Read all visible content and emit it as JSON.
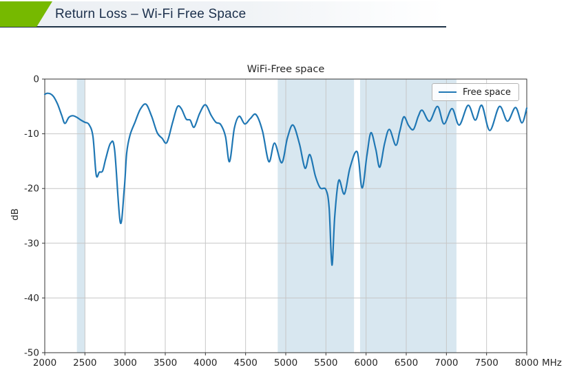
{
  "header": {
    "title": "Return Loss – Wi-Fi Free Space",
    "accent_color": "#76b900",
    "underline_color": "#1e3246",
    "title_color": "#1b2f4b"
  },
  "chart_data": {
    "type": "line",
    "title": "WiFi-Free space",
    "ylabel": "dB",
    "x_unit": "MHz",
    "xlim": [
      2000,
      8000
    ],
    "ylim": [
      -50,
      0
    ],
    "x_ticks": [
      2000,
      2500,
      3000,
      3500,
      4000,
      4500,
      5000,
      5500,
      6000,
      6500,
      7000,
      7500,
      8000
    ],
    "y_ticks": [
      0,
      -10,
      -20,
      -30,
      -40,
      -50
    ],
    "grid": true,
    "grid_color": "#c6c6c6",
    "spine_color": "#333333",
    "legend": {
      "position": "upper right",
      "entries": [
        {
          "label": "Free space",
          "color": "#1f77b4"
        }
      ]
    },
    "bands": {
      "color": "#d8e7f0",
      "regions": [
        {
          "name": "wifi-2.4GHz-band",
          "from": 2400,
          "to": 2500
        },
        {
          "name": "wifi-5GHz-band",
          "from": 4900,
          "to": 5850
        },
        {
          "name": "wifi-6GHz-band",
          "from": 5925,
          "to": 7125
        }
      ]
    },
    "series": [
      {
        "name": "Free space",
        "color": "#1f77b4",
        "points": [
          [
            2000,
            -2.8
          ],
          [
            2030,
            -2.6
          ],
          [
            2070,
            -2.7
          ],
          [
            2110,
            -3.2
          ],
          [
            2160,
            -4.6
          ],
          [
            2210,
            -6.6
          ],
          [
            2250,
            -8.1
          ],
          [
            2300,
            -7.0
          ],
          [
            2350,
            -6.7
          ],
          [
            2400,
            -7.0
          ],
          [
            2450,
            -7.5
          ],
          [
            2500,
            -7.9
          ],
          [
            2550,
            -8.3
          ],
          [
            2600,
            -10.5
          ],
          [
            2640,
            -17.5
          ],
          [
            2680,
            -17.0
          ],
          [
            2720,
            -16.8
          ],
          [
            2760,
            -14.5
          ],
          [
            2820,
            -11.7
          ],
          [
            2870,
            -13.0
          ],
          [
            2940,
            -26.2
          ],
          [
            2990,
            -20.0
          ],
          [
            3020,
            -13.5
          ],
          [
            3060,
            -10.3
          ],
          [
            3120,
            -8.0
          ],
          [
            3190,
            -5.5
          ],
          [
            3260,
            -4.6
          ],
          [
            3330,
            -6.8
          ],
          [
            3400,
            -9.8
          ],
          [
            3460,
            -10.8
          ],
          [
            3520,
            -11.6
          ],
          [
            3590,
            -8.0
          ],
          [
            3650,
            -5.1
          ],
          [
            3700,
            -5.4
          ],
          [
            3760,
            -7.3
          ],
          [
            3810,
            -7.5
          ],
          [
            3860,
            -8.8
          ],
          [
            3930,
            -6.2
          ],
          [
            4000,
            -4.7
          ],
          [
            4070,
            -6.6
          ],
          [
            4130,
            -7.9
          ],
          [
            4190,
            -8.3
          ],
          [
            4250,
            -10.5
          ],
          [
            4300,
            -15.1
          ],
          [
            4360,
            -9.0
          ],
          [
            4420,
            -6.8
          ],
          [
            4490,
            -8.2
          ],
          [
            4560,
            -7.2
          ],
          [
            4630,
            -6.5
          ],
          [
            4710,
            -9.5
          ],
          [
            4790,
            -15.1
          ],
          [
            4860,
            -11.7
          ],
          [
            4950,
            -15.3
          ],
          [
            5020,
            -10.8
          ],
          [
            5090,
            -8.4
          ],
          [
            5170,
            -11.8
          ],
          [
            5240,
            -16.3
          ],
          [
            5300,
            -13.8
          ],
          [
            5370,
            -17.8
          ],
          [
            5430,
            -19.9
          ],
          [
            5500,
            -20.2
          ],
          [
            5540,
            -23.5
          ],
          [
            5575,
            -34.0
          ],
          [
            5610,
            -25.0
          ],
          [
            5660,
            -18.5
          ],
          [
            5730,
            -21.0
          ],
          [
            5800,
            -16.2
          ],
          [
            5890,
            -13.3
          ],
          [
            5950,
            -19.9
          ],
          [
            6010,
            -14.0
          ],
          [
            6060,
            -9.8
          ],
          [
            6120,
            -12.8
          ],
          [
            6170,
            -16.1
          ],
          [
            6230,
            -11.8
          ],
          [
            6290,
            -9.2
          ],
          [
            6370,
            -12.1
          ],
          [
            6420,
            -9.5
          ],
          [
            6470,
            -6.9
          ],
          [
            6530,
            -8.5
          ],
          [
            6590,
            -9.2
          ],
          [
            6650,
            -6.8
          ],
          [
            6700,
            -5.7
          ],
          [
            6790,
            -7.7
          ],
          [
            6890,
            -5.0
          ],
          [
            6970,
            -8.2
          ],
          [
            7070,
            -5.4
          ],
          [
            7160,
            -8.4
          ],
          [
            7270,
            -4.8
          ],
          [
            7360,
            -7.5
          ],
          [
            7440,
            -4.8
          ],
          [
            7540,
            -9.4
          ],
          [
            7660,
            -5.0
          ],
          [
            7760,
            -7.7
          ],
          [
            7860,
            -5.2
          ],
          [
            7940,
            -8.0
          ],
          [
            8000,
            -5.3
          ]
        ]
      }
    ]
  }
}
